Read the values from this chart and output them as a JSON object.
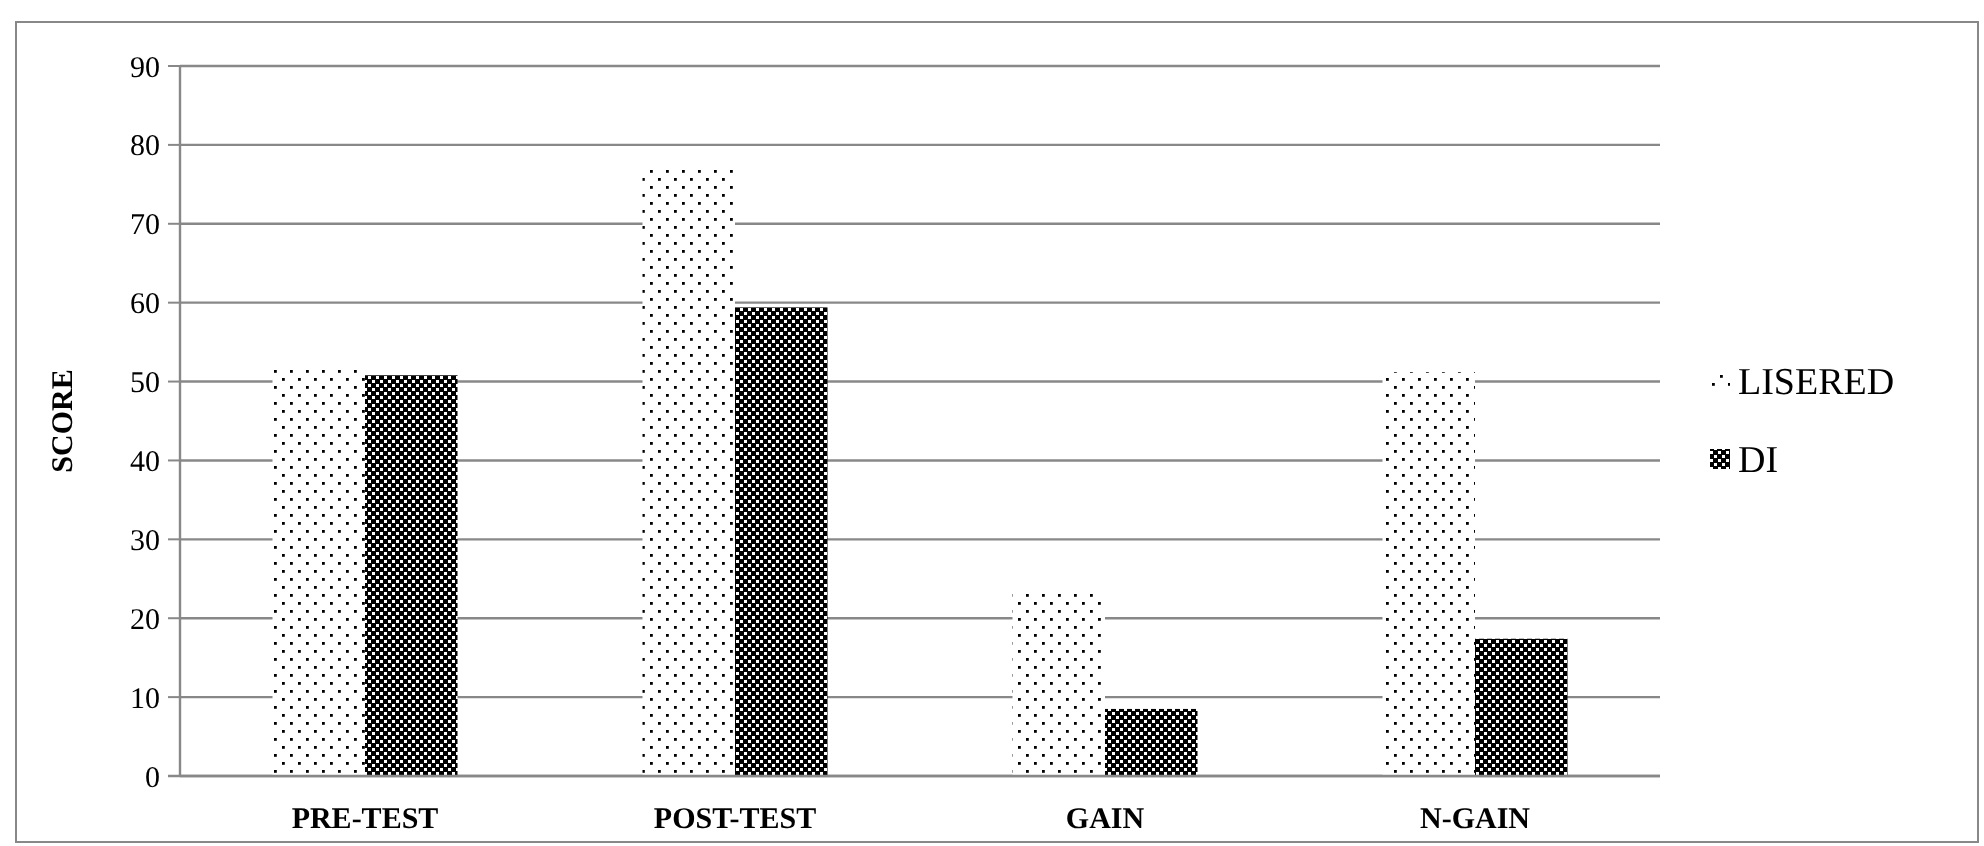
{
  "chart_data": {
    "type": "bar",
    "ylabel": "SCORE",
    "categories": [
      "PRE-TEST",
      "POST-TEST",
      "GAIN",
      "N-GAIN"
    ],
    "series": [
      {
        "name": "LISERED",
        "color": "#000000",
        "values": [
          51.5,
          76.9,
          23.3,
          51.2
        ]
      },
      {
        "name": "DI",
        "color": "#000000",
        "values": [
          50.8,
          59.4,
          8.5,
          17.4
        ]
      }
    ],
    "ylim": [
      0,
      90
    ],
    "yticks": [
      0,
      10,
      20,
      30,
      40,
      50,
      60,
      70,
      80,
      90
    ],
    "grid": "y",
    "legend": "right"
  }
}
